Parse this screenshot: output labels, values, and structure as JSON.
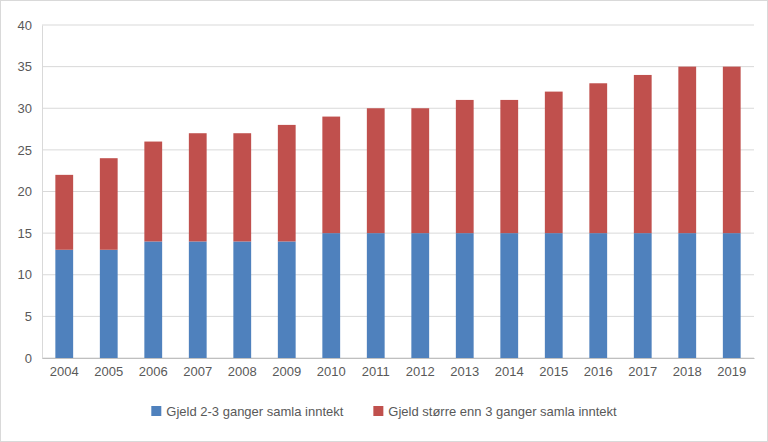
{
  "chart_data": {
    "type": "bar",
    "stacked": true,
    "grid": true,
    "legend": "bottom",
    "categories": [
      "2004",
      "2005",
      "2006",
      "2007",
      "2008",
      "2009",
      "2010",
      "2011",
      "2012",
      "2013",
      "2014",
      "2015",
      "2016",
      "2017",
      "2018",
      "2019"
    ],
    "series": [
      {
        "name": "Gjeld 2-3 ganger samla inntekt",
        "color": "#4f81bd",
        "values": [
          13,
          13,
          14,
          14,
          14,
          14,
          15,
          15,
          15,
          15,
          15,
          15,
          15,
          15,
          15,
          15
        ]
      },
      {
        "name": "Gjeld større enn 3 ganger samla inntekt",
        "color": "#c0504d",
        "values": [
          9,
          11,
          12,
          13,
          13,
          14,
          14,
          15,
          15,
          16,
          16,
          17,
          18,
          19,
          20,
          20
        ]
      }
    ],
    "ylim": [
      0,
      40
    ],
    "yticks": [
      0,
      5,
      10,
      15,
      20,
      25,
      30,
      35,
      40
    ]
  }
}
